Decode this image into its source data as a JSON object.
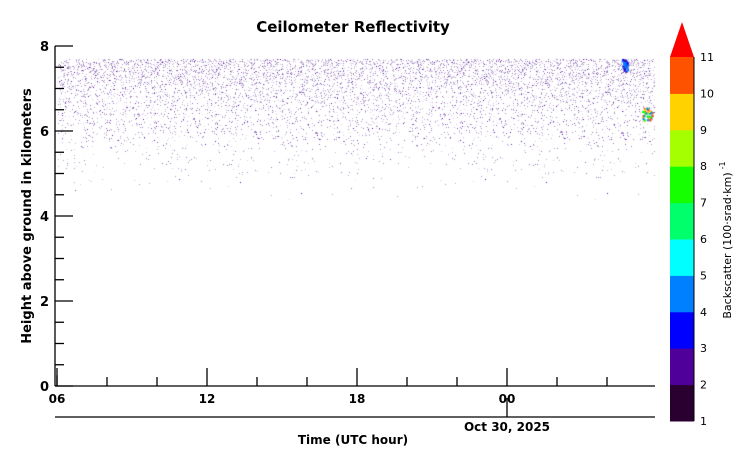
{
  "chart_data": {
    "type": "heatmap",
    "title": "Ceilometer Reflectivity",
    "xlabel": "Time (UTC hour)",
    "ylabel": "Height above ground in kilometers",
    "x_tick_labels": [
      "06",
      "12",
      "18",
      "00"
    ],
    "x_tick_hours": [
      6,
      12,
      18,
      24
    ],
    "x_range_hours": [
      6,
      29.9
    ],
    "date_label": "Oct 30, 2025",
    "date_label_hour": 24,
    "y_tick_labels": [
      "0",
      "2",
      "4",
      "6",
      "8"
    ],
    "ylim": [
      0,
      8
    ],
    "colorbar": {
      "label": "Backscatter (100·srad·km)",
      "label_exponent": "-1",
      "tick_labels": [
        "1",
        "2",
        "3",
        "4",
        "5",
        "6",
        "7",
        "8",
        "9",
        "10",
        "11"
      ],
      "colors": [
        "#2a0030",
        "#50009a",
        "#0000ff",
        "#0080ff",
        "#00ffff",
        "#00ff6a",
        "#16ff00",
        "#a6ff00",
        "#ffd200",
        "#ff5200"
      ],
      "extend_color": "#ff0000",
      "extend": "max"
    },
    "noise_band": {
      "bottom_km": 4.2,
      "top_km": 7.7,
      "dominant_value_range": [
        1,
        2
      ],
      "color": "#8a6ab0"
    },
    "features": [
      {
        "hour_start": 28.6,
        "hour_end": 28.8,
        "height_km": [
          7.4,
          7.7
        ],
        "max_value": 4,
        "colors": [
          "#0000ff",
          "#0080ff",
          "#50009a"
        ]
      },
      {
        "hour_start": 29.4,
        "hour_end": 29.8,
        "height_km": [
          6.25,
          6.55
        ],
        "max_value": 10,
        "colors": [
          "#ff5200",
          "#16ff00",
          "#0080ff",
          "#ffd200"
        ]
      }
    ]
  }
}
